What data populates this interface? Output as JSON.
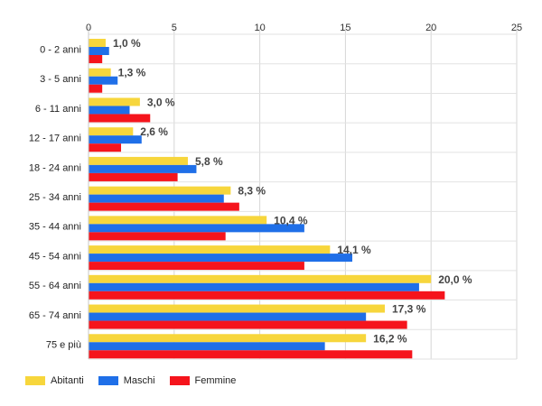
{
  "chart_data": {
    "type": "bar",
    "orientation": "horizontal",
    "categories": [
      "0 - 2 anni",
      "3 - 5 anni",
      "6 - 11 anni",
      "12 - 17 anni",
      "18 - 24 anni",
      "25 - 34 anni",
      "35 - 44 anni",
      "45 - 54 anni",
      "55 - 64 anni",
      "65 - 74 anni",
      "75 e più"
    ],
    "series": [
      {
        "name": "Abitanti",
        "color": "#f7d63c",
        "values": [
          1.0,
          1.3,
          3.0,
          2.6,
          5.8,
          8.3,
          10.4,
          14.1,
          20.0,
          17.3,
          16.2
        ]
      },
      {
        "name": "Maschi",
        "color": "#1f6fe8",
        "values": [
          1.2,
          1.7,
          2.4,
          3.1,
          6.3,
          7.9,
          12.6,
          15.4,
          19.3,
          16.2,
          13.8
        ]
      },
      {
        "name": "Femmine",
        "color": "#f5141c",
        "values": [
          0.8,
          0.8,
          3.6,
          1.9,
          5.2,
          8.8,
          8.0,
          12.6,
          20.8,
          18.6,
          18.9
        ]
      }
    ],
    "value_labels": [
      "1,0 %",
      "1,3 %",
      "3,0 %",
      "2,6 %",
      "5,8 %",
      "8,3 %",
      "10,4 %",
      "14,1 %",
      "20,0 %",
      "17,3 %",
      "16,2 %"
    ],
    "xlim": [
      0,
      25
    ],
    "xticks": [
      0,
      5,
      10,
      15,
      20,
      25
    ],
    "xtick_labels": [
      "0",
      "5",
      "10",
      "15",
      "20",
      "25"
    ],
    "x_axis_position": "top",
    "grid": true,
    "legend_position": "bottom-left"
  }
}
